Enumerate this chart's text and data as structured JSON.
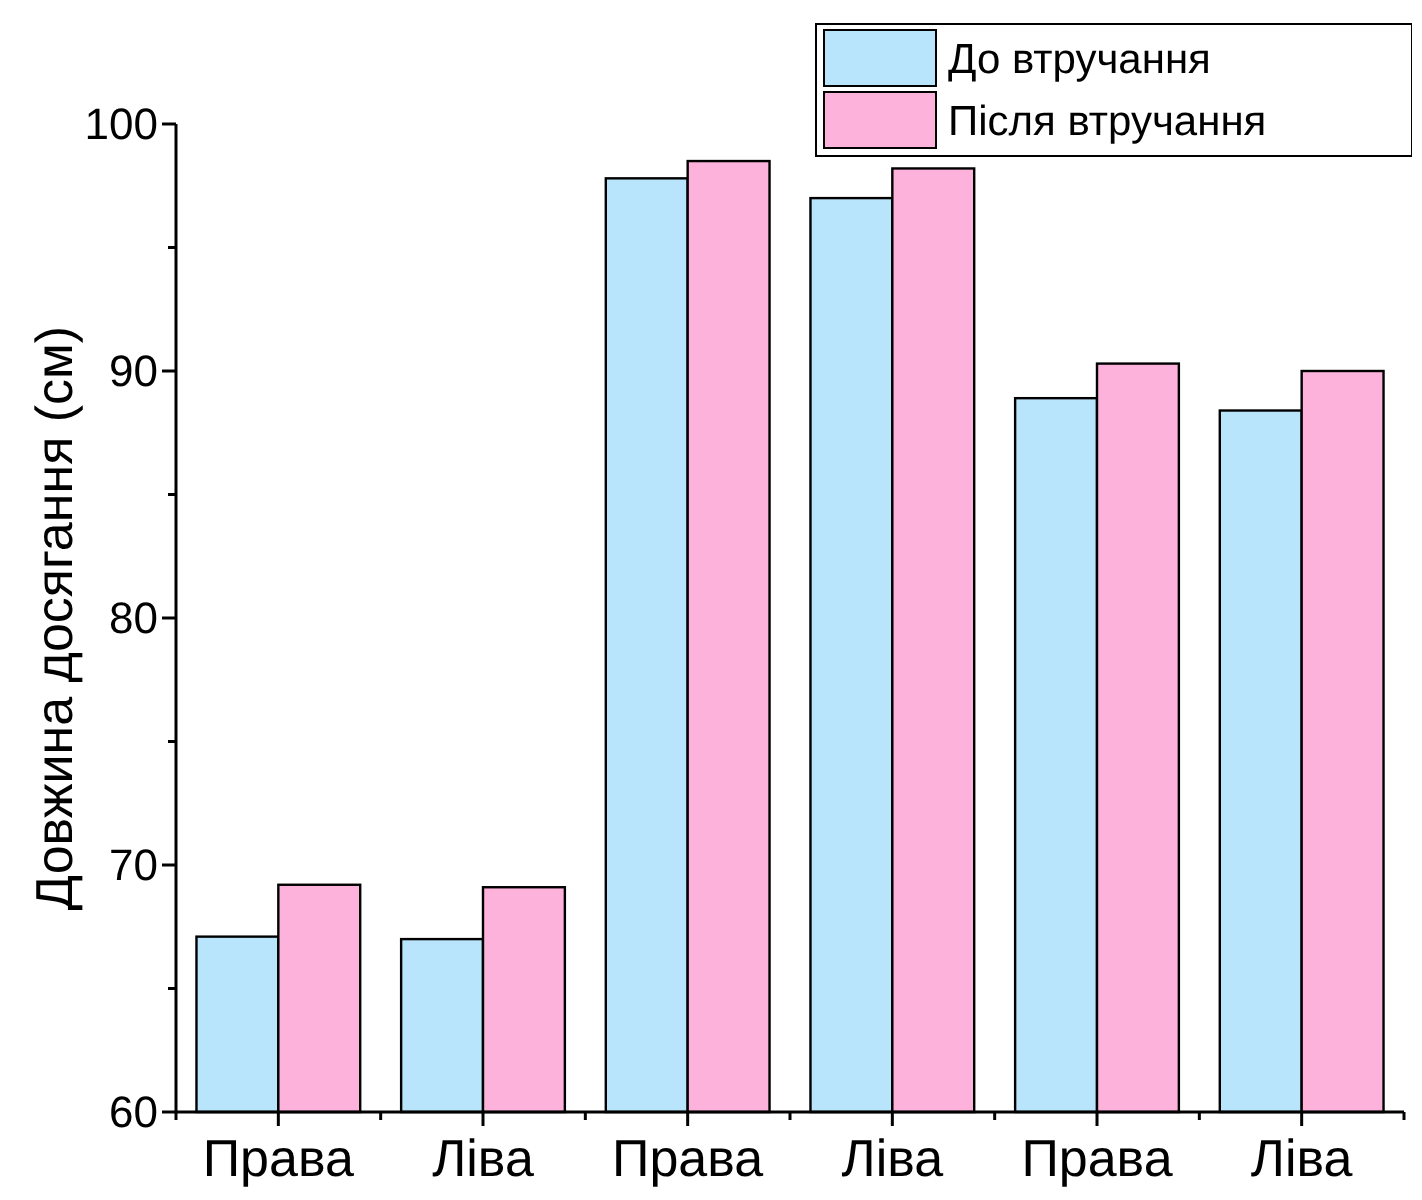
{
  "chart_data": {
    "type": "bar",
    "ylabel": "Довжина досягання (см)",
    "categories": [
      "Права",
      "Ліва",
      "Права",
      "Ліва",
      "Права",
      "Ліва"
    ],
    "series": [
      {
        "name": "До втручання",
        "color": "#b8e4fc",
        "values": [
          67.1,
          67.0,
          97.8,
          97.0,
          88.9,
          88.4
        ]
      },
      {
        "name": "Після втручання",
        "color": "#fdb2dc",
        "values": [
          69.2,
          69.1,
          98.5,
          98.2,
          90.3,
          90.0
        ]
      }
    ],
    "ylim": [
      60,
      100
    ],
    "yticks": [
      60,
      {
        "value": 65,
        "label": null
      },
      70,
      {
        "value": 75,
        "label": null
      },
      80,
      {
        "value": 85,
        "label": null
      },
      90,
      {
        "value": 95,
        "label": null
      },
      100
    ],
    "legend": "top right",
    "grid": false
  }
}
